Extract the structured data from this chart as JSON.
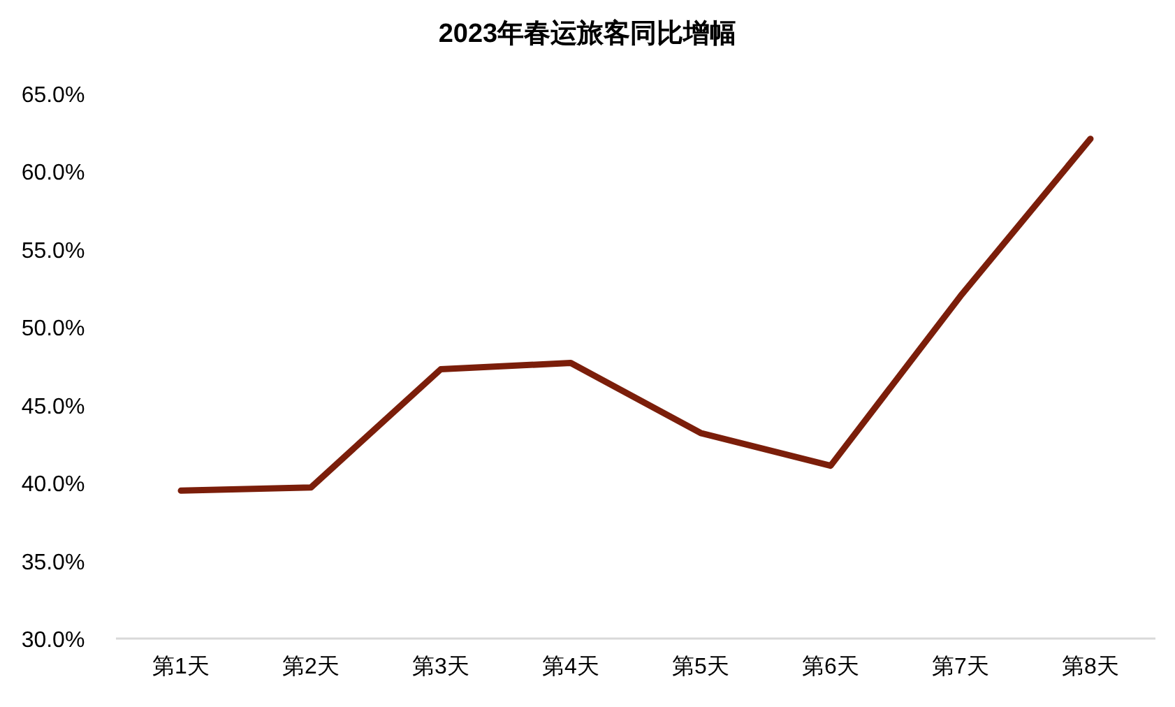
{
  "chart_data": {
    "type": "line",
    "title": "2023年春运旅客同比增幅",
    "categories": [
      "第1天",
      "第2天",
      "第3天",
      "第4天",
      "第5天",
      "第6天",
      "第7天",
      "第8天"
    ],
    "values": [
      39.5,
      39.7,
      47.3,
      47.7,
      43.2,
      41.1,
      52.0,
      62.1
    ],
    "color": "#7b1e0a",
    "ylim": [
      30,
      65
    ],
    "yticks": [
      {
        "value": 30,
        "label": "30.0%"
      },
      {
        "value": 35,
        "label": "35.0%"
      },
      {
        "value": 40,
        "label": "40.0%"
      },
      {
        "value": 45,
        "label": "45.0%"
      },
      {
        "value": 50,
        "label": "50.0%"
      },
      {
        "value": 55,
        "label": "55.0%"
      },
      {
        "value": 60,
        "label": "60.0%"
      },
      {
        "value": 65,
        "label": "65.0%"
      }
    ]
  }
}
